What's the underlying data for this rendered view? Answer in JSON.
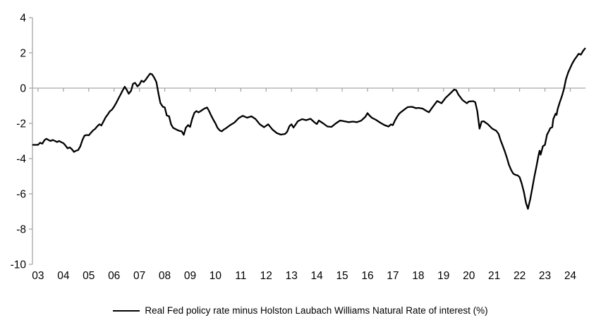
{
  "colors": {
    "background": "#ffffff",
    "axis": "#a6a6a6",
    "line": "#000000",
    "text": "#000000"
  },
  "legend": {
    "label": "Real Fed policy rate minus Holston Laubach Williams Natural Rate of interest (%)"
  },
  "chart_data": {
    "type": "line",
    "title": "",
    "xlabel": "",
    "ylabel": "",
    "grid": "zero-line-only",
    "legend_position": "bottom",
    "x_range": [
      2002.78,
      2024.6
    ],
    "y_range": [
      -10,
      4
    ],
    "y_ticks": {
      "positions": [
        4,
        2,
        0,
        -2,
        -4,
        -6,
        -8,
        -10
      ],
      "labels": [
        "4",
        "2",
        "0",
        "-2",
        "-4",
        "-6",
        "-8",
        "-10"
      ]
    },
    "x_ticks": {
      "positions": [
        2003,
        2004,
        2005,
        2006,
        2007,
        2008,
        2009,
        2010,
        2011,
        2012,
        2013,
        2014,
        2015,
        2016,
        2017,
        2018,
        2019,
        2020,
        2021,
        2022,
        2023,
        2024
      ],
      "labels": [
        "03",
        "04",
        "05",
        "06",
        "07",
        "08",
        "09",
        "10",
        "11",
        "12",
        "13",
        "14",
        "15",
        "16",
        "17",
        "18",
        "19",
        "20",
        "21",
        "22",
        "23",
        "24"
      ]
    },
    "series": [
      {
        "name": "Real Fed policy rate minus Holston Laubach Williams Natural Rate of interest (%)",
        "color": "#000000",
        "points": [
          [
            2002.8,
            -3.22
          ],
          [
            2003.0,
            -3.22
          ],
          [
            2003.08,
            -3.1
          ],
          [
            2003.17,
            -3.15
          ],
          [
            2003.25,
            -2.96
          ],
          [
            2003.33,
            -2.87
          ],
          [
            2003.42,
            -2.95
          ],
          [
            2003.5,
            -3.0
          ],
          [
            2003.58,
            -2.94
          ],
          [
            2003.67,
            -3.0
          ],
          [
            2003.75,
            -3.06
          ],
          [
            2003.83,
            -3.0
          ],
          [
            2003.92,
            -3.07
          ],
          [
            2004.0,
            -3.12
          ],
          [
            2004.08,
            -3.25
          ],
          [
            2004.17,
            -3.42
          ],
          [
            2004.25,
            -3.36
          ],
          [
            2004.33,
            -3.46
          ],
          [
            2004.42,
            -3.62
          ],
          [
            2004.5,
            -3.55
          ],
          [
            2004.58,
            -3.52
          ],
          [
            2004.67,
            -3.3
          ],
          [
            2004.75,
            -2.95
          ],
          [
            2004.83,
            -2.7
          ],
          [
            2004.92,
            -2.66
          ],
          [
            2005.0,
            -2.68
          ],
          [
            2005.08,
            -2.55
          ],
          [
            2005.17,
            -2.4
          ],
          [
            2005.25,
            -2.32
          ],
          [
            2005.33,
            -2.18
          ],
          [
            2005.42,
            -2.05
          ],
          [
            2005.5,
            -2.12
          ],
          [
            2005.58,
            -1.9
          ],
          [
            2005.67,
            -1.65
          ],
          [
            2005.75,
            -1.5
          ],
          [
            2005.83,
            -1.32
          ],
          [
            2005.92,
            -1.22
          ],
          [
            2006.0,
            -1.05
          ],
          [
            2006.08,
            -0.85
          ],
          [
            2006.17,
            -0.6
          ],
          [
            2006.25,
            -0.38
          ],
          [
            2006.33,
            -0.15
          ],
          [
            2006.42,
            0.08
          ],
          [
            2006.5,
            -0.1
          ],
          [
            2006.58,
            -0.32
          ],
          [
            2006.67,
            -0.15
          ],
          [
            2006.75,
            0.25
          ],
          [
            2006.83,
            0.3
          ],
          [
            2006.92,
            0.1
          ],
          [
            2007.0,
            0.2
          ],
          [
            2007.08,
            0.42
          ],
          [
            2007.17,
            0.35
          ],
          [
            2007.25,
            0.48
          ],
          [
            2007.33,
            0.65
          ],
          [
            2007.42,
            0.82
          ],
          [
            2007.5,
            0.78
          ],
          [
            2007.58,
            0.6
          ],
          [
            2007.67,
            0.35
          ],
          [
            2007.75,
            -0.3
          ],
          [
            2007.83,
            -0.85
          ],
          [
            2007.92,
            -1.05
          ],
          [
            2008.0,
            -1.1
          ],
          [
            2008.08,
            -1.55
          ],
          [
            2008.17,
            -1.6
          ],
          [
            2008.25,
            -2.05
          ],
          [
            2008.33,
            -2.25
          ],
          [
            2008.42,
            -2.32
          ],
          [
            2008.5,
            -2.38
          ],
          [
            2008.58,
            -2.43
          ],
          [
            2008.67,
            -2.45
          ],
          [
            2008.75,
            -2.65
          ],
          [
            2008.83,
            -2.25
          ],
          [
            2008.92,
            -2.1
          ],
          [
            2009.0,
            -2.2
          ],
          [
            2009.08,
            -1.75
          ],
          [
            2009.17,
            -1.4
          ],
          [
            2009.25,
            -1.3
          ],
          [
            2009.33,
            -1.38
          ],
          [
            2009.42,
            -1.3
          ],
          [
            2009.5,
            -1.22
          ],
          [
            2009.58,
            -1.15
          ],
          [
            2009.67,
            -1.1
          ],
          [
            2009.75,
            -1.3
          ],
          [
            2009.83,
            -1.55
          ],
          [
            2009.92,
            -1.8
          ],
          [
            2010.0,
            -2.0
          ],
          [
            2010.08,
            -2.25
          ],
          [
            2010.17,
            -2.4
          ],
          [
            2010.25,
            -2.45
          ],
          [
            2010.33,
            -2.35
          ],
          [
            2010.42,
            -2.27
          ],
          [
            2010.58,
            -2.1
          ],
          [
            2010.75,
            -1.95
          ],
          [
            2010.92,
            -1.7
          ],
          [
            2011.08,
            -1.57
          ],
          [
            2011.25,
            -1.68
          ],
          [
            2011.42,
            -1.6
          ],
          [
            2011.58,
            -1.75
          ],
          [
            2011.75,
            -2.05
          ],
          [
            2011.92,
            -2.22
          ],
          [
            2012.08,
            -2.05
          ],
          [
            2012.25,
            -2.35
          ],
          [
            2012.42,
            -2.55
          ],
          [
            2012.58,
            -2.64
          ],
          [
            2012.75,
            -2.6
          ],
          [
            2012.83,
            -2.47
          ],
          [
            2012.92,
            -2.16
          ],
          [
            2013.0,
            -2.05
          ],
          [
            2013.08,
            -2.24
          ],
          [
            2013.25,
            -1.88
          ],
          [
            2013.42,
            -1.76
          ],
          [
            2013.58,
            -1.82
          ],
          [
            2013.75,
            -1.74
          ],
          [
            2013.92,
            -1.96
          ],
          [
            2014.0,
            -2.04
          ],
          [
            2014.08,
            -1.84
          ],
          [
            2014.25,
            -2.0
          ],
          [
            2014.42,
            -2.18
          ],
          [
            2014.58,
            -2.2
          ],
          [
            2014.75,
            -2.0
          ],
          [
            2014.92,
            -1.84
          ],
          [
            2015.08,
            -1.88
          ],
          [
            2015.25,
            -1.93
          ],
          [
            2015.42,
            -1.9
          ],
          [
            2015.58,
            -1.93
          ],
          [
            2015.75,
            -1.85
          ],
          [
            2015.92,
            -1.62
          ],
          [
            2016.0,
            -1.42
          ],
          [
            2016.08,
            -1.56
          ],
          [
            2016.17,
            -1.68
          ],
          [
            2016.33,
            -1.8
          ],
          [
            2016.5,
            -1.96
          ],
          [
            2016.67,
            -2.1
          ],
          [
            2016.83,
            -2.18
          ],
          [
            2016.92,
            -2.06
          ],
          [
            2017.0,
            -2.1
          ],
          [
            2017.08,
            -1.85
          ],
          [
            2017.17,
            -1.62
          ],
          [
            2017.25,
            -1.45
          ],
          [
            2017.33,
            -1.35
          ],
          [
            2017.42,
            -1.25
          ],
          [
            2017.58,
            -1.08
          ],
          [
            2017.75,
            -1.06
          ],
          [
            2017.92,
            -1.14
          ],
          [
            2018.0,
            -1.12
          ],
          [
            2018.17,
            -1.16
          ],
          [
            2018.33,
            -1.3
          ],
          [
            2018.42,
            -1.37
          ],
          [
            2018.58,
            -1.05
          ],
          [
            2018.75,
            -0.73
          ],
          [
            2018.92,
            -0.86
          ],
          [
            2019.08,
            -0.55
          ],
          [
            2019.25,
            -0.32
          ],
          [
            2019.42,
            -0.08
          ],
          [
            2019.5,
            -0.12
          ],
          [
            2019.58,
            -0.35
          ],
          [
            2019.75,
            -0.68
          ],
          [
            2019.92,
            -0.86
          ],
          [
            2020.0,
            -0.76
          ],
          [
            2020.17,
            -0.74
          ],
          [
            2020.25,
            -0.8
          ],
          [
            2020.33,
            -1.3
          ],
          [
            2020.42,
            -2.3
          ],
          [
            2020.5,
            -1.9
          ],
          [
            2020.58,
            -1.88
          ],
          [
            2020.75,
            -2.05
          ],
          [
            2020.92,
            -2.3
          ],
          [
            2021.08,
            -2.42
          ],
          [
            2021.17,
            -2.6
          ],
          [
            2021.25,
            -2.95
          ],
          [
            2021.33,
            -3.25
          ],
          [
            2021.42,
            -3.6
          ],
          [
            2021.5,
            -3.95
          ],
          [
            2021.58,
            -4.35
          ],
          [
            2021.67,
            -4.65
          ],
          [
            2021.75,
            -4.85
          ],
          [
            2021.83,
            -4.92
          ],
          [
            2021.92,
            -4.95
          ],
          [
            2022.0,
            -5.05
          ],
          [
            2022.08,
            -5.4
          ],
          [
            2022.17,
            -5.9
          ],
          [
            2022.25,
            -6.5
          ],
          [
            2022.33,
            -6.85
          ],
          [
            2022.42,
            -6.3
          ],
          [
            2022.5,
            -5.7
          ],
          [
            2022.58,
            -5.05
          ],
          [
            2022.67,
            -4.4
          ],
          [
            2022.75,
            -3.8
          ],
          [
            2022.79,
            -3.55
          ],
          [
            2022.83,
            -3.78
          ],
          [
            2022.92,
            -3.3
          ],
          [
            2023.0,
            -3.22
          ],
          [
            2023.08,
            -2.65
          ],
          [
            2023.17,
            -2.4
          ],
          [
            2023.21,
            -2.27
          ],
          [
            2023.29,
            -2.22
          ],
          [
            2023.33,
            -1.75
          ],
          [
            2023.42,
            -1.45
          ],
          [
            2023.46,
            -1.52
          ],
          [
            2023.5,
            -1.2
          ],
          [
            2023.58,
            -0.82
          ],
          [
            2023.67,
            -0.45
          ],
          [
            2023.75,
            -0.05
          ],
          [
            2023.83,
            0.5
          ],
          [
            2023.92,
            0.9
          ],
          [
            2024.0,
            1.15
          ],
          [
            2024.08,
            1.4
          ],
          [
            2024.17,
            1.62
          ],
          [
            2024.25,
            1.78
          ],
          [
            2024.33,
            1.95
          ],
          [
            2024.42,
            1.9
          ],
          [
            2024.5,
            2.1
          ],
          [
            2024.58,
            2.25
          ]
        ]
      }
    ]
  }
}
